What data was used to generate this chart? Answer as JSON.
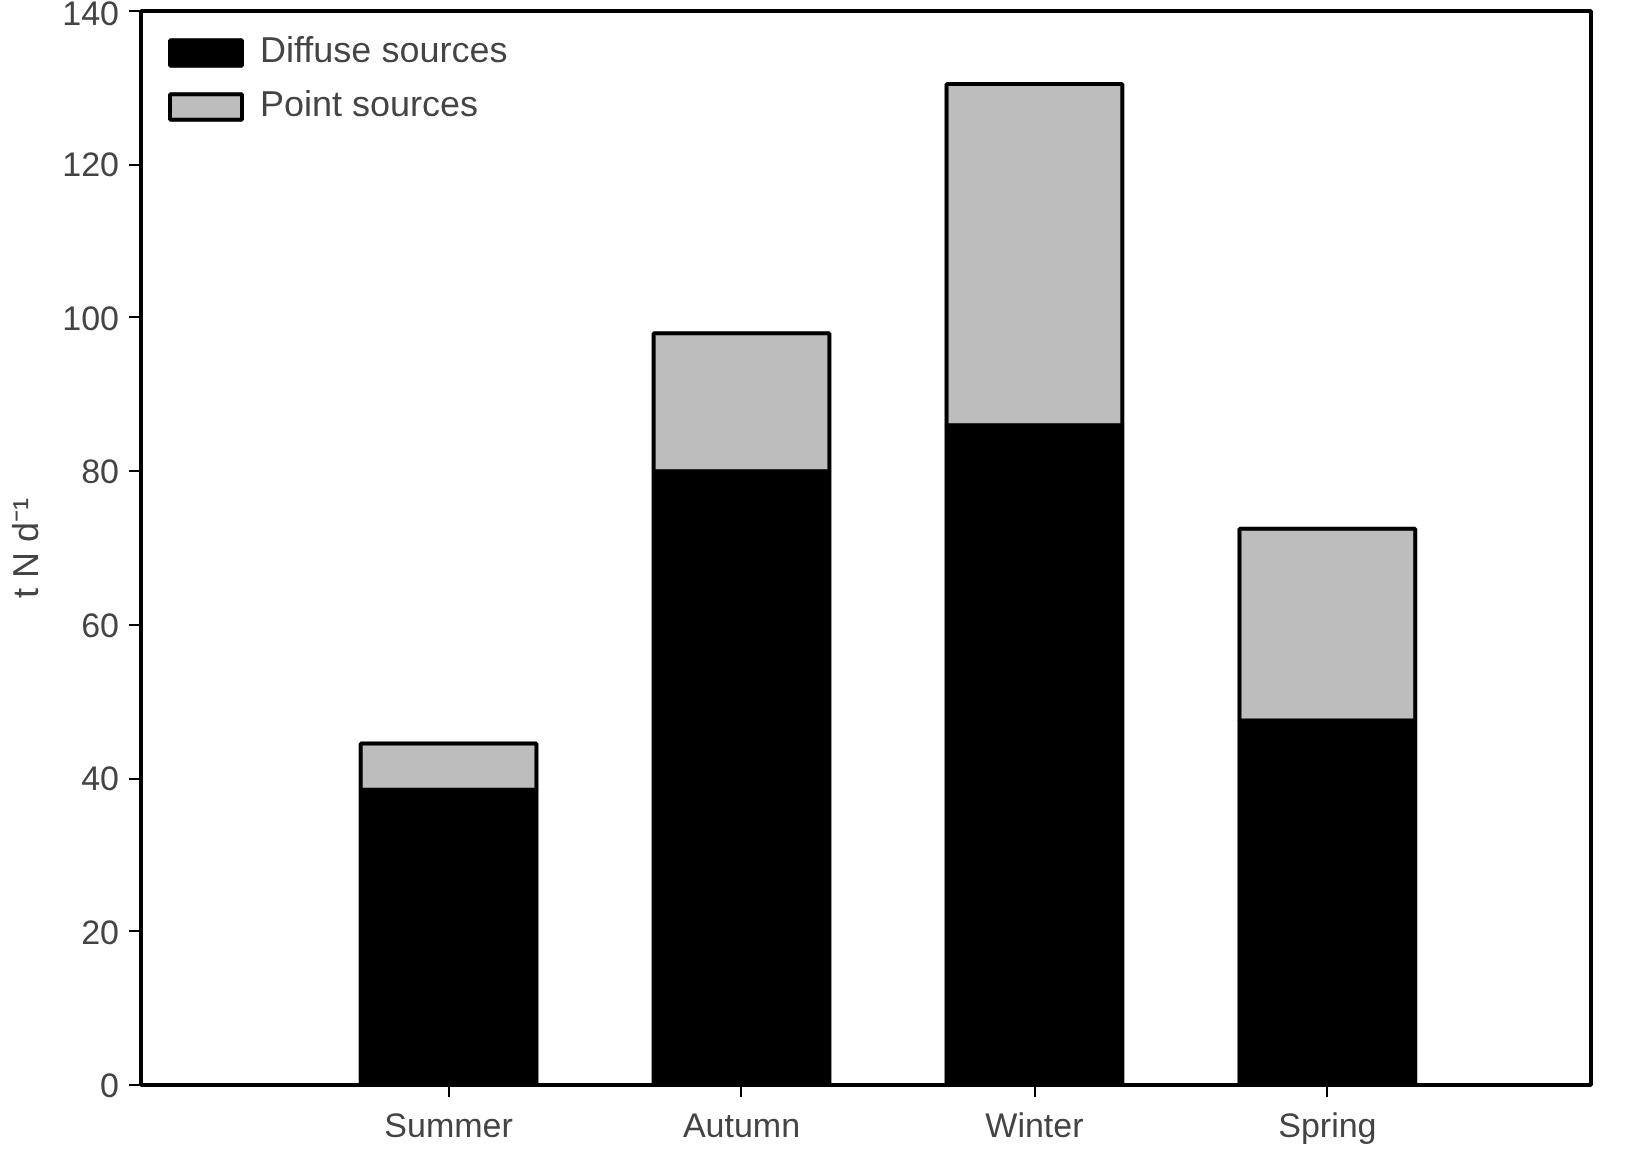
{
  "chart_data": {
    "type": "bar",
    "stacked": true,
    "ylabel": "t N d⁻¹",
    "categories": [
      "Summer",
      "Autumn",
      "Winter",
      "Spring"
    ],
    "series": [
      {
        "name": "Diffuse sources",
        "color": "#000000",
        "values": [
          38.5,
          80,
          86,
          47.5
        ]
      },
      {
        "name": "Point sources",
        "color": "#bdbdbd",
        "values": [
          6,
          18,
          44.5,
          25
        ]
      }
    ],
    "ylim": [
      0,
      140
    ],
    "yticks": [
      0,
      20,
      40,
      60,
      80,
      100,
      120,
      140
    ],
    "grid": false,
    "legend": "top left"
  }
}
